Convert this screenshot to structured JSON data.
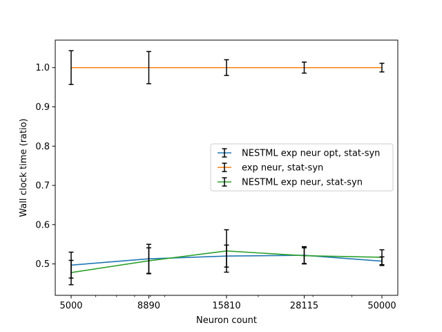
{
  "chart_data": {
    "type": "line",
    "title": "",
    "xlabel": "Neuron count",
    "ylabel": "Wall clock time (ratio)",
    "x_scale": "log",
    "x": [
      5000,
      8890,
      15810,
      28115,
      50000
    ],
    "x_tick_labels": [
      "5000",
      "8890",
      "15810",
      "28115",
      "50000"
    ],
    "ylim": [
      0.42,
      1.07
    ],
    "y_ticks": [
      0.5,
      0.6,
      0.7,
      0.8,
      0.9,
      1.0
    ],
    "y_tick_labels": [
      "0.5",
      "0.6",
      "0.7",
      "0.8",
      "0.9",
      "1.0"
    ],
    "grid": false,
    "legend_position": "center-right",
    "series": [
      {
        "name": "NESTML exp neur opt, stat-syn",
        "color": "#1f77b4",
        "values": [
          0.497,
          0.513,
          0.52,
          0.522,
          0.507
        ],
        "errors": [
          0.033,
          0.037,
          0.028,
          0.022,
          0.011
        ]
      },
      {
        "name": "exp neur, stat-syn",
        "color": "#ff7f0e",
        "values": [
          1.0,
          1.0,
          1.0,
          1.0,
          1.0
        ],
        "errors": [
          0.043,
          0.041,
          0.02,
          0.014,
          0.011
        ]
      },
      {
        "name": "NESTML exp neur, stat-syn",
        "color": "#2ca02c",
        "values": [
          0.478,
          0.508,
          0.533,
          0.521,
          0.517
        ],
        "errors": [
          0.031,
          0.033,
          0.054,
          0.02,
          0.019
        ]
      }
    ]
  }
}
